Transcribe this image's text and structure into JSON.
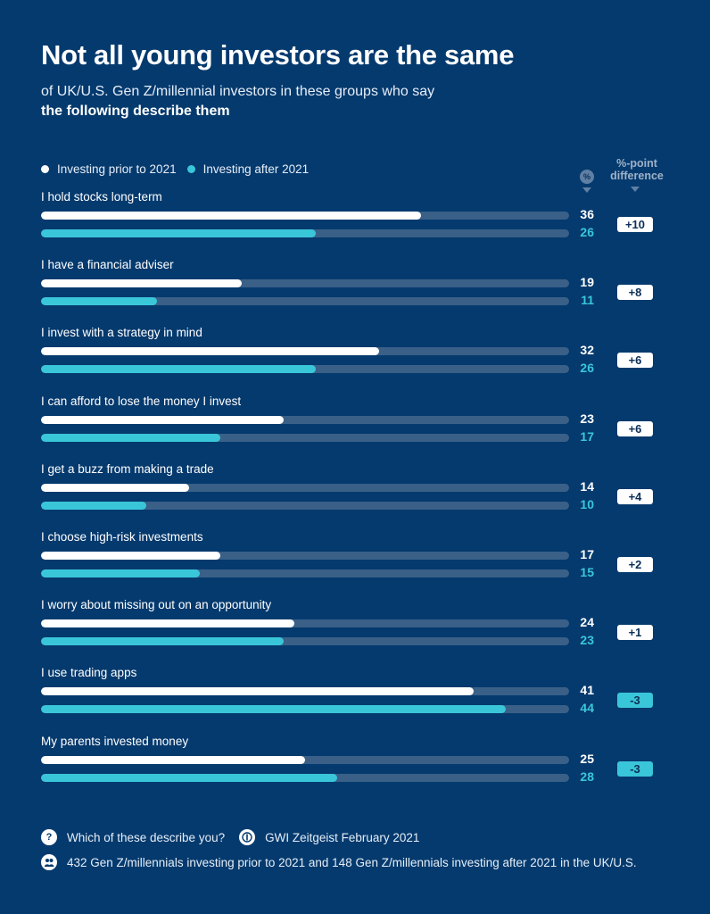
{
  "header": {
    "title": "Not all young investors are the same",
    "subtitle_line1": "of UK/U.S. Gen Z/millennial investors in these groups who say",
    "subtitle_line2": "the following describe them"
  },
  "column_heads": {
    "percent": "%",
    "difference": "%-point difference"
  },
  "colors": {
    "background": "#053a6e",
    "prior": "#ffffff",
    "after": "#3ac6d9",
    "track": "#3a6088"
  },
  "chart_data": {
    "type": "bar",
    "orientation": "horizontal",
    "title": "Not all young investors are the same",
    "subtitle": "of UK/U.S. Gen Z/millennial investors in these groups who say the following describe them",
    "xlim": [
      0,
      50
    ],
    "legend_position": "top-left",
    "series": [
      {
        "name": "Investing prior to 2021",
        "color": "#ffffff"
      },
      {
        "name": "Investing after 2021",
        "color": "#3ac6d9"
      }
    ],
    "rows": [
      {
        "label": "I hold stocks long-term",
        "prior": 36,
        "after": 26,
        "diff": "+10"
      },
      {
        "label": "I have a financial adviser",
        "prior": 19,
        "after": 11,
        "diff": "+8"
      },
      {
        "label": "I invest with a strategy in mind",
        "prior": 32,
        "after": 26,
        "diff": "+6"
      },
      {
        "label": "I can afford to lose the money I invest",
        "prior": 23,
        "after": 17,
        "diff": "+6"
      },
      {
        "label": "I get a buzz from making a trade",
        "prior": 14,
        "after": 10,
        "diff": "+4"
      },
      {
        "label": "I choose high-risk investments",
        "prior": 17,
        "after": 15,
        "diff": "+2"
      },
      {
        "label": "I worry about missing out on an opportunity",
        "prior": 24,
        "after": 23,
        "diff": "+1"
      },
      {
        "label": "I use trading apps",
        "prior": 41,
        "after": 44,
        "diff": "-3"
      },
      {
        "label": "My parents invested money",
        "prior": 25,
        "after": 28,
        "diff": "-3"
      }
    ]
  },
  "footer": {
    "question": "Which of these describe you?",
    "source": "GWI Zeitgeist February 2021",
    "sample": "432 Gen Z/millennials investing prior to 2021 and 148 Gen Z/millennials investing after 2021 in the UK/U.S."
  }
}
